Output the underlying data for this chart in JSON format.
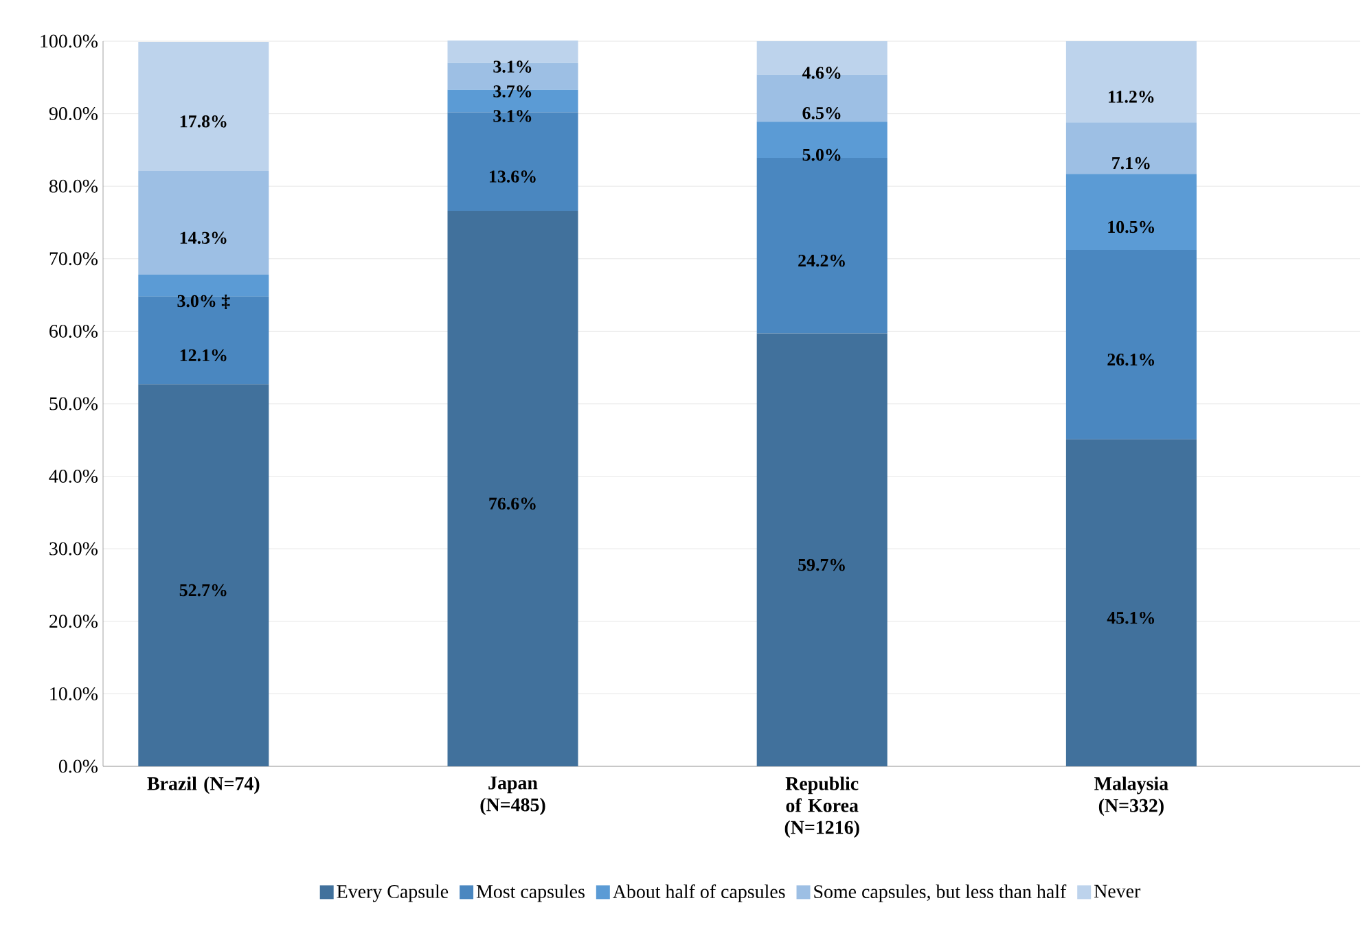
{
  "chart_data": {
    "type": "bar",
    "stacked": true,
    "categories": [
      "Brazil (N=74)",
      "Japan (N=485)",
      "Republic of Korea (N=1216)",
      "Malaysia (N=332)"
    ],
    "series": [
      {
        "name": "Every Capsule",
        "color": "#41719c",
        "values": [
          52.7,
          76.6,
          59.7,
          45.1
        ],
        "value_labels": [
          "52.7%",
          "76.6%",
          "59.7%",
          "45.1%"
        ]
      },
      {
        "name": "Most capsules",
        "color": "#4a87c0",
        "values": [
          12.1,
          13.6,
          24.2,
          26.1
        ],
        "value_labels": [
          "12.1%",
          "13.6%",
          "24.2%",
          "26.1%"
        ]
      },
      {
        "name": "About half of capsules",
        "color": "#5b9bd5",
        "values": [
          3.0,
          3.1,
          5.0,
          10.5
        ],
        "value_labels": [
          "3.0% ‡",
          "3.1%",
          "5.0%",
          "10.5%"
        ]
      },
      {
        "name": "Some capsules, but less than half",
        "color": "#9dbfe4",
        "values": [
          14.3,
          3.7,
          6.5,
          7.1
        ],
        "value_labels": [
          "14.3%",
          "3.7%",
          "6.5%",
          "7.1%"
        ]
      },
      {
        "name": "Never",
        "color": "#bdd3ec",
        "values": [
          17.8,
          3.1,
          4.6,
          11.2
        ],
        "value_labels": [
          "17.8%",
          "3.1%",
          "4.6%",
          "11.2%"
        ]
      }
    ],
    "ylim": [
      0,
      100
    ],
    "yticks": [
      {
        "value": 0,
        "label": "0.0%"
      },
      {
        "value": 10,
        "label": "10.0%"
      },
      {
        "value": 20,
        "label": "20.0%"
      },
      {
        "value": 30,
        "label": "30.0%"
      },
      {
        "value": 40,
        "label": "40.0%"
      },
      {
        "value": 50,
        "label": "50.0%"
      },
      {
        "value": 60,
        "label": "60.0%"
      },
      {
        "value": 70,
        "label": "70.0%"
      },
      {
        "value": 80,
        "label": "80.0%"
      },
      {
        "value": 90,
        "label": "90.0%"
      },
      {
        "value": 100,
        "label": "100.0%"
      }
    ],
    "grid": "y",
    "legend": "bottom"
  }
}
